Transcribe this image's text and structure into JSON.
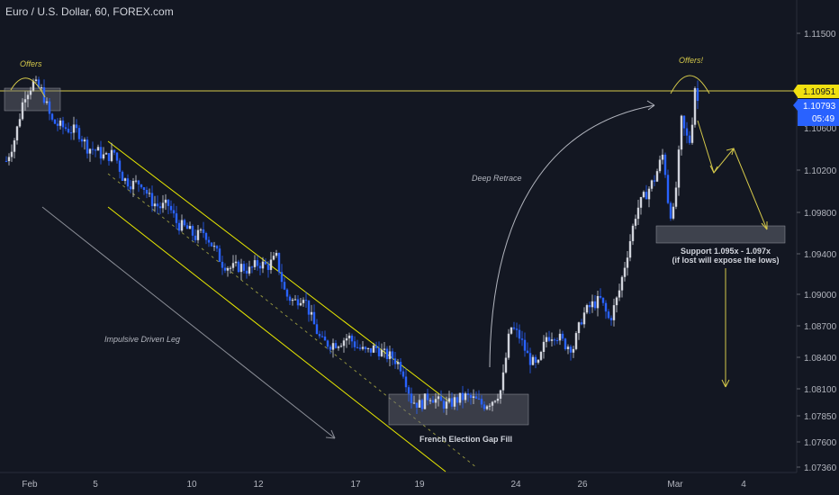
{
  "header": {
    "title": "Euro / U.S. Dollar, 60, FOREX.com"
  },
  "colors": {
    "background": "#131722",
    "candle_up": "#d1d4dc",
    "candle_down": "#2962ff",
    "trendline": "#e8e800",
    "resistance_line": "#d4c84a",
    "annotation_text": "#b2b5be",
    "price_badge_yellow": "#f0e010",
    "price_badge_blue": "#2962ff"
  },
  "axis": {
    "y_ticks": [
      "1.11500",
      "1.10951",
      "1.10793",
      "1.10200",
      "1.09800",
      "1.09400",
      "1.09000",
      "1.08700",
      "1.08400",
      "1.08100",
      "1.07850",
      "1.07600",
      "1.07360"
    ],
    "x_ticks": [
      "Feb",
      "5",
      "10",
      "12",
      "17",
      "19",
      "24",
      "26",
      "Mar",
      "4"
    ],
    "resistance_label": "1.10951",
    "last_price_label": "1.10793",
    "countdown_label": "05:49",
    "hidden_tick_label": "1.10600"
  },
  "annotations": {
    "offers_left": "Offers",
    "offers_right": "Offers!",
    "deep_retrace": "Deep Retrace",
    "impulsive": "Impulsive Driven Leg",
    "gap_fill": "French Election Gap Fill",
    "support_line1": "Support 1.095x - 1.097x",
    "support_line2": "(if lost will expose the lows)"
  },
  "chart_data": {
    "type": "candlestick",
    "title": "Euro / U.S. Dollar, 60, FOREX.com",
    "symbol": "EUR/USD",
    "timeframe": "60",
    "x_ticks": [
      "Feb",
      "5",
      "10",
      "12",
      "17",
      "19",
      "24",
      "26",
      "Mar",
      "4"
    ],
    "ylim": [
      1.0726,
      1.1175
    ],
    "resistance_level": 1.10951,
    "last_price": 1.10793,
    "support_zone": [
      1.095,
      1.097
    ],
    "price_path": [
      {
        "x": 0,
        "y": 1.1022
      },
      {
        "x": 10,
        "y": 1.1045
      },
      {
        "x": 20,
        "y": 1.1085
      },
      {
        "x": 30,
        "y": 1.1096
      },
      {
        "x": 40,
        "y": 1.1088
      },
      {
        "x": 50,
        "y": 1.106
      },
      {
        "x": 60,
        "y": 1.1055
      },
      {
        "x": 70,
        "y": 1.1052
      },
      {
        "x": 80,
        "y": 1.105
      },
      {
        "x": 90,
        "y": 1.1035
      },
      {
        "x": 100,
        "y": 1.1032
      },
      {
        "x": 110,
        "y": 1.1025
      },
      {
        "x": 120,
        "y": 1.103
      },
      {
        "x": 130,
        "y": 1.1005
      },
      {
        "x": 140,
        "y": 1.1
      },
      {
        "x": 150,
        "y": 1.1002
      },
      {
        "x": 160,
        "y": 1.0985
      },
      {
        "x": 170,
        "y": 1.0978
      },
      {
        "x": 180,
        "y": 1.098
      },
      {
        "x": 190,
        "y": 1.0962
      },
      {
        "x": 200,
        "y": 1.0958
      },
      {
        "x": 210,
        "y": 1.095
      },
      {
        "x": 220,
        "y": 1.0955
      },
      {
        "x": 230,
        "y": 1.094
      },
      {
        "x": 240,
        "y": 1.0925
      },
      {
        "x": 250,
        "y": 1.092
      },
      {
        "x": 260,
        "y": 1.0922
      },
      {
        "x": 270,
        "y": 1.0918
      },
      {
        "x": 280,
        "y": 1.0925
      },
      {
        "x": 290,
        "y": 1.0922
      },
      {
        "x": 300,
        "y": 1.093
      },
      {
        "x": 310,
        "y": 1.0895
      },
      {
        "x": 320,
        "y": 1.0888
      },
      {
        "x": 330,
        "y": 1.0895
      },
      {
        "x": 340,
        "y": 1.087
      },
      {
        "x": 350,
        "y": 1.085
      },
      {
        "x": 360,
        "y": 1.0848
      },
      {
        "x": 370,
        "y": 1.085
      },
      {
        "x": 380,
        "y": 1.0855
      },
      {
        "x": 390,
        "y": 1.0845
      },
      {
        "x": 400,
        "y": 1.084
      },
      {
        "x": 410,
        "y": 1.0845
      },
      {
        "x": 420,
        "y": 1.0838
      },
      {
        "x": 430,
        "y": 1.0835
      },
      {
        "x": 440,
        "y": 1.0825
      },
      {
        "x": 450,
        "y": 1.0795
      },
      {
        "x": 460,
        "y": 1.079
      },
      {
        "x": 470,
        "y": 1.08
      },
      {
        "x": 480,
        "y": 1.0793
      },
      {
        "x": 490,
        "y": 1.079
      },
      {
        "x": 500,
        "y": 1.0795
      },
      {
        "x": 510,
        "y": 1.0798
      },
      {
        "x": 520,
        "y": 1.0795
      },
      {
        "x": 530,
        "y": 1.079
      },
      {
        "x": 540,
        "y": 1.0795
      },
      {
        "x": 550,
        "y": 1.0805
      },
      {
        "x": 560,
        "y": 1.0865
      },
      {
        "x": 570,
        "y": 1.0855
      },
      {
        "x": 580,
        "y": 1.0835
      },
      {
        "x": 590,
        "y": 1.0825
      },
      {
        "x": 600,
        "y": 1.0855
      },
      {
        "x": 610,
        "y": 1.0858
      },
      {
        "x": 620,
        "y": 1.0848
      },
      {
        "x": 630,
        "y": 1.0845
      },
      {
        "x": 640,
        "y": 1.0875
      },
      {
        "x": 650,
        "y": 1.0885
      },
      {
        "x": 660,
        "y": 1.089
      },
      {
        "x": 670,
        "y": 1.087
      },
      {
        "x": 680,
        "y": 1.0895
      },
      {
        "x": 690,
        "y": 1.0935
      },
      {
        "x": 700,
        "y": 1.0975
      },
      {
        "x": 710,
        "y": 1.099
      },
      {
        "x": 720,
        "y": 1.1005
      },
      {
        "x": 730,
        "y": 1.103
      },
      {
        "x": 735,
        "y": 1.0985
      },
      {
        "x": 740,
        "y": 1.0965
      },
      {
        "x": 745,
        "y": 1.1005
      },
      {
        "x": 750,
        "y": 1.106
      },
      {
        "x": 755,
        "y": 1.1045
      },
      {
        "x": 760,
        "y": 1.104
      },
      {
        "x": 765,
        "y": 1.1093
      },
      {
        "x": 768,
        "y": 1.1079
      }
    ]
  }
}
